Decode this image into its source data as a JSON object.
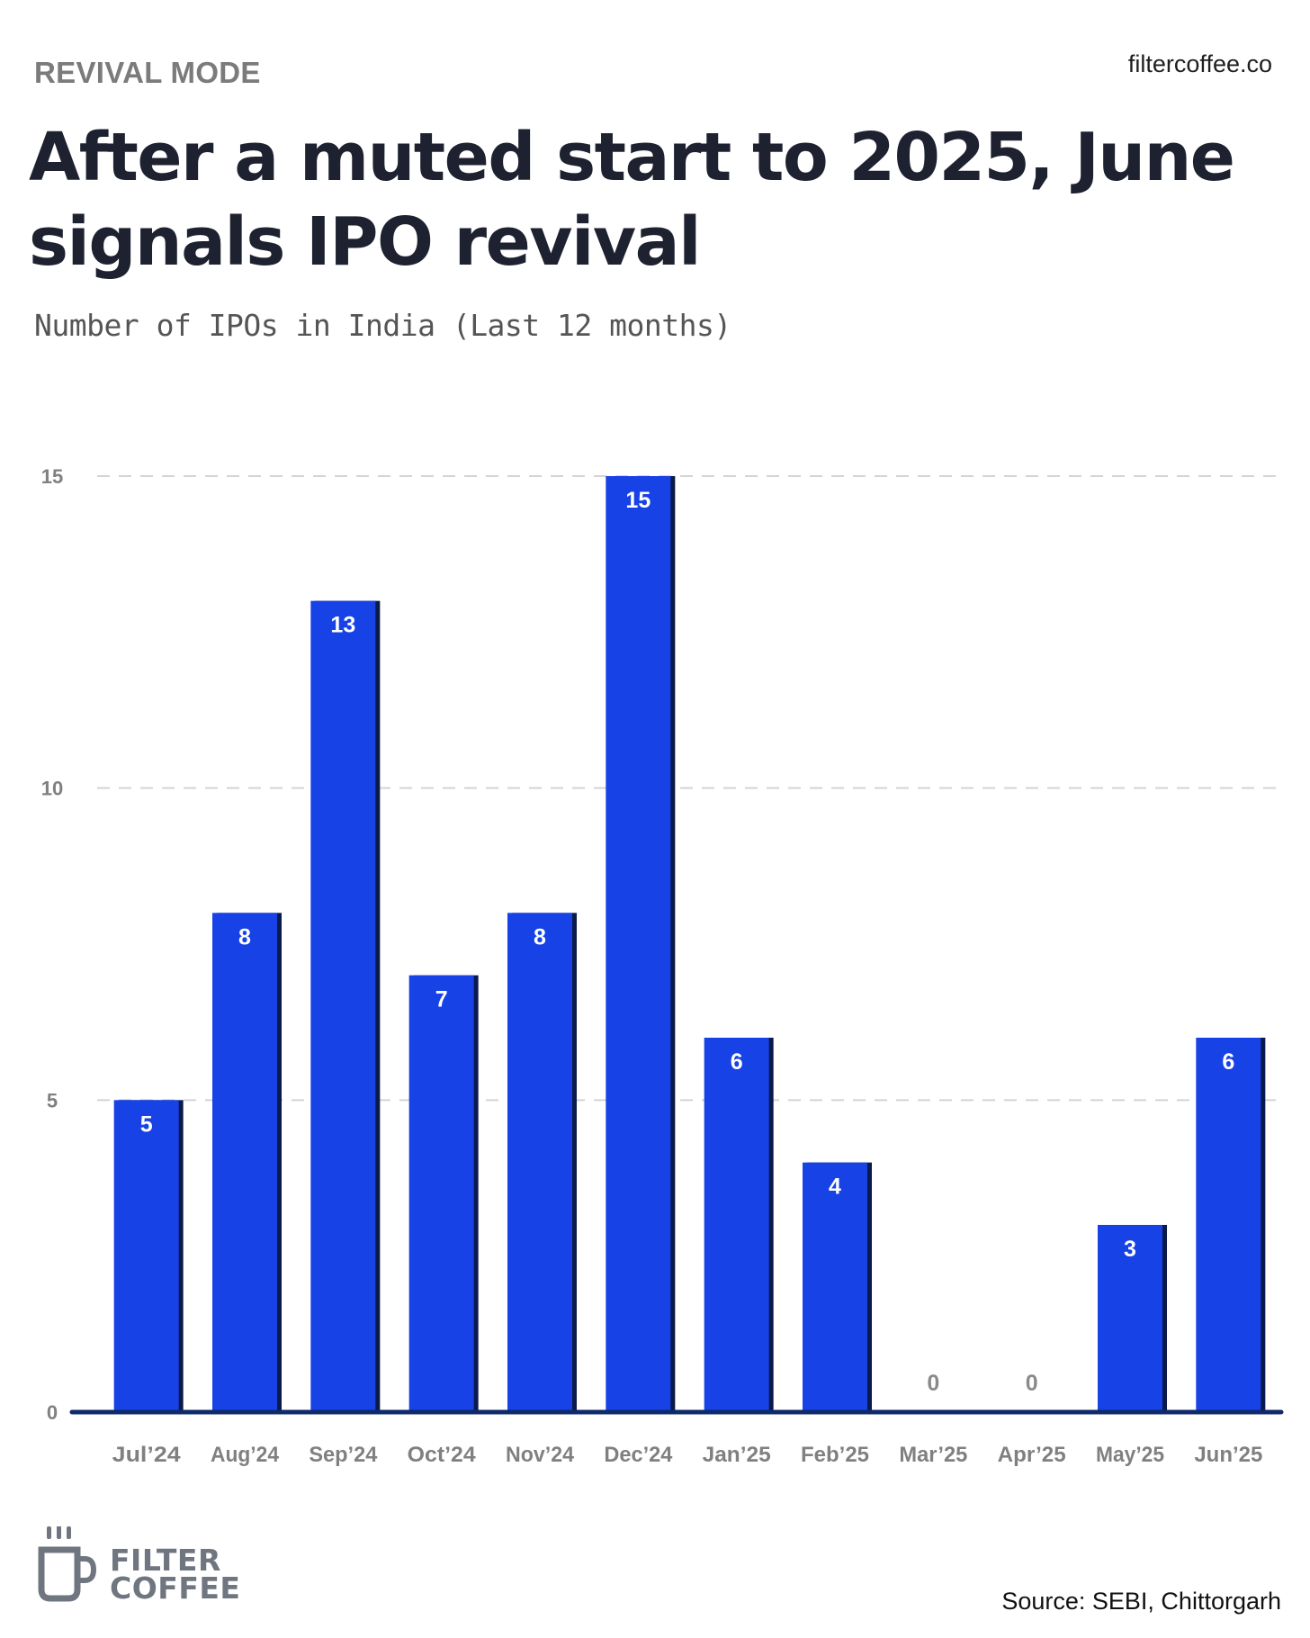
{
  "header": {
    "kicker": "REVIVAL MODE",
    "site": "filtercoffee.co"
  },
  "title": "After a muted start to 2025, June signals IPO revival",
  "subtitle": "Number of IPOs in India (Last 12 months)",
  "source": "Source: SEBI, Chittorgarh",
  "logo": {
    "line1": "FILTER",
    "line2": "COFFEE",
    "icon": "coffee-mug-icon"
  },
  "colors": {
    "bar": "#1742e6",
    "bar_shadow": "#0a1a4a",
    "baseline": "#0f2a6b",
    "grid": "#d4d4d4",
    "tick_text": "#808080",
    "value_label_inside": "#ffffff",
    "value_label_zero": "#8a8a8a"
  },
  "chart_data": {
    "type": "bar",
    "title": "Number of IPOs in India (Last 12 months)",
    "xlabel": "",
    "ylabel": "",
    "categories": [
      "Jul’24",
      "Aug’24",
      "Sep’24",
      "Oct’24",
      "Nov’24",
      "Dec’24",
      "Jan’25",
      "Feb’25",
      "Mar’25",
      "Apr’25",
      "May’25",
      "Jun’25"
    ],
    "values": [
      5,
      8,
      13,
      7,
      8,
      15,
      6,
      4,
      0,
      0,
      3,
      6
    ],
    "value_labels": [
      "5",
      "8",
      "13",
      "7",
      "8",
      "15",
      "6",
      "4",
      "0",
      "0",
      "3",
      "6"
    ],
    "yticks": [
      0,
      5,
      10,
      15
    ],
    "ytick_labels": [
      "0",
      "5",
      "10",
      "15"
    ],
    "ylim": [
      0,
      15
    ],
    "grid": true,
    "legend": "none"
  }
}
